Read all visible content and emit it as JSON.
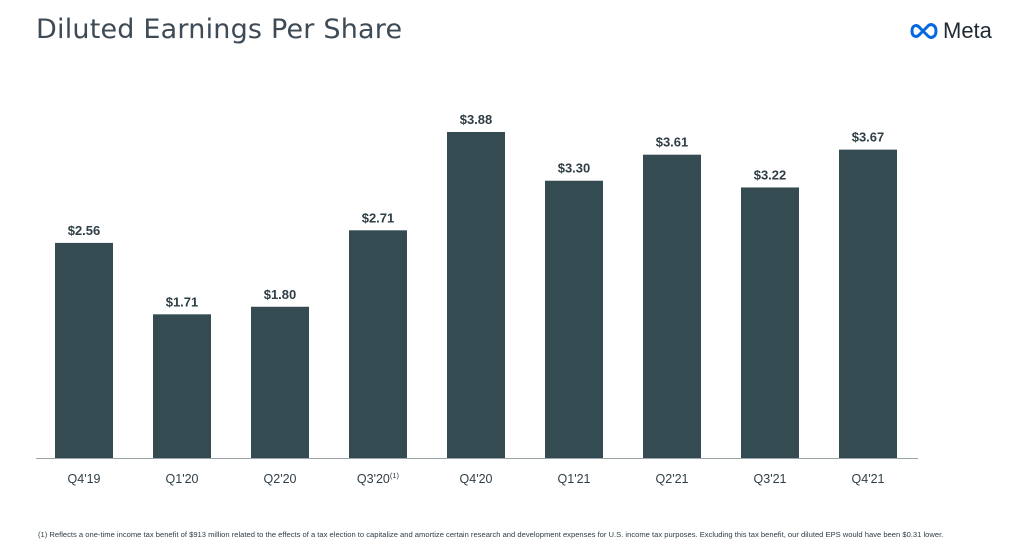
{
  "header": {
    "title": "Diluted Earnings Per Share",
    "logo_text": "Meta",
    "logo_icon": "meta-infinity-icon",
    "logo_color": "#0668E1"
  },
  "chart_data": {
    "type": "bar",
    "categories": [
      "Q4'19",
      "Q1'20",
      "Q2'20",
      "Q3'20",
      "Q4'20",
      "Q1'21",
      "Q2'21",
      "Q3'21",
      "Q4'21"
    ],
    "category_superscripts": [
      "",
      "",
      "",
      "(1)",
      "",
      "",
      "",
      "",
      ""
    ],
    "values": [
      2.56,
      1.71,
      1.8,
      2.71,
      3.88,
      3.3,
      3.61,
      3.22,
      3.67
    ],
    "value_labels": [
      "$2.56",
      "$1.71",
      "$1.80",
      "$2.71",
      "$3.88",
      "$3.30",
      "$3.61",
      "$3.22",
      "$3.67"
    ],
    "bar_color": "#344b52",
    "ylim": [
      0,
      3.88
    ],
    "grid": false
  },
  "footnote": "(1) Reflects a one-time income tax benefit of $913 million related to the effects of a tax election to capitalize and amortize certain research and development expenses for U.S. income tax purposes. Excluding this tax benefit, our diluted EPS would have been $0.31 lower."
}
